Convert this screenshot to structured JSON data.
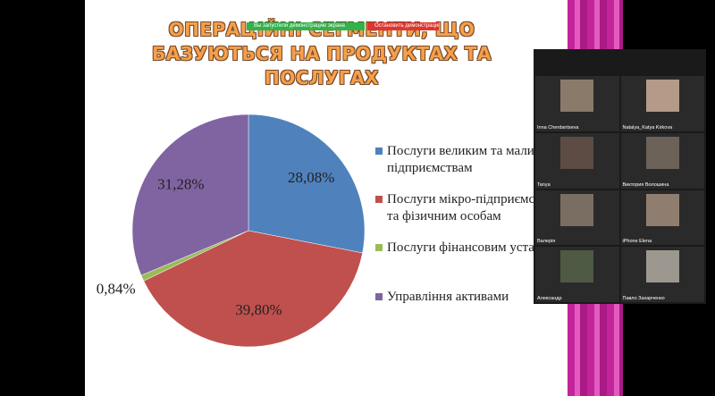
{
  "toolbar": {
    "sharing": "Вы запустили демонстрацию экрана",
    "stop": "Остановить демонстрацию"
  },
  "chart_data": {
    "type": "pie",
    "title": "ОПЕРАЦІЙНІ СЕГМЕНТИ, ЩО БАЗУЮТЬСЯ НА ПРОДУКТАХ ТА ПОСЛУГАХ",
    "categories": [
      "Послуги великим та малим підприємствам",
      "Послуги мікро-підприємствам та фізичним особам",
      "Послуги фінансовим установам",
      "Управління активами"
    ],
    "values": [
      28.08,
      39.8,
      0.84,
      31.28
    ],
    "value_labels": [
      "28,08%",
      "39,80%",
      "0,84%",
      "31,28%"
    ],
    "colors": [
      "#4f81bd",
      "#c0504d",
      "#9bbb59",
      "#8064a2"
    ],
    "legend": "right"
  },
  "participants": [
    "Inna Cherdantseva",
    "Natalya_Katya Kirkova",
    "Tanya",
    "Виктория Волошина",
    "Валерія",
    "iPhone Elena",
    "Александр",
    "Павло Захарченко"
  ]
}
